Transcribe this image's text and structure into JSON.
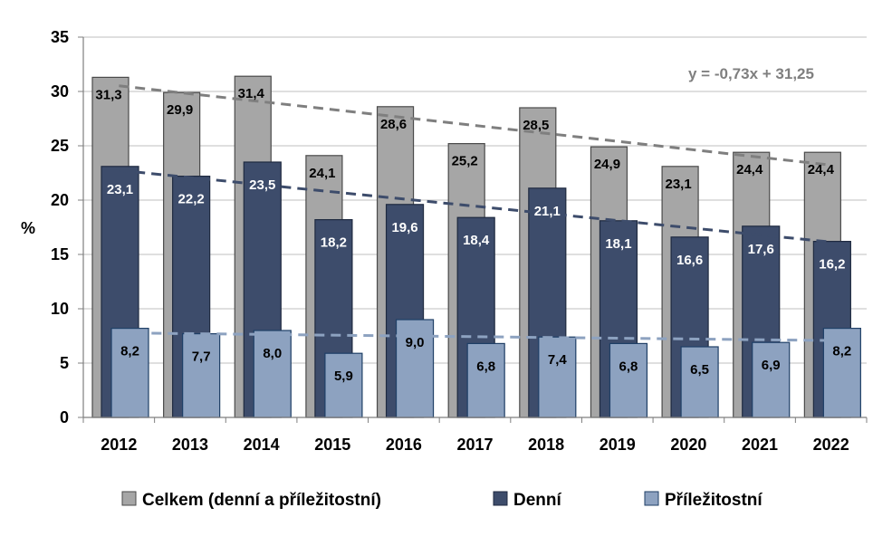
{
  "chart_data": {
    "type": "bar",
    "title": "",
    "xlabel": "",
    "ylabel": "%",
    "ylim": [
      0,
      35
    ],
    "yticks": [
      0,
      5,
      10,
      15,
      20,
      25,
      30,
      35
    ],
    "grid": true,
    "legend_position": "bottom",
    "categories": [
      "2012",
      "2013",
      "2014",
      "2015",
      "2016",
      "2017",
      "2018",
      "2019",
      "2020",
      "2021",
      "2022"
    ],
    "series": [
      {
        "name": "Celkem (denní a příležitostní)",
        "color": "#a6a6a6",
        "label_color": "#000000",
        "values": [
          31.3,
          29.9,
          31.4,
          24.1,
          28.6,
          25.2,
          28.5,
          24.9,
          23.1,
          24.4,
          24.4
        ],
        "labels": [
          "31,3",
          "29,9",
          "31,4",
          "24,1",
          "28,6",
          "25,2",
          "28,5",
          "24,9",
          "23,1",
          "24,4",
          "24,4"
        ],
        "trendline": {
          "slope": -0.73,
          "intercept": 31.25,
          "color": "#7f7f7f"
        }
      },
      {
        "name": "Denní",
        "color": "#3d4c6b",
        "label_color": "#ffffff",
        "values": [
          23.1,
          22.2,
          23.5,
          18.2,
          19.6,
          18.4,
          21.1,
          18.1,
          16.6,
          17.6,
          16.2
        ],
        "labels": [
          "23,1",
          "22,2",
          "23,5",
          "18,2",
          "19,6",
          "18,4",
          "21,1",
          "18,1",
          "16,6",
          "17,6",
          "16,2"
        ],
        "trendline": {
          "slope": -0.66,
          "intercept": 23.4,
          "color": "#3d4c6b"
        }
      },
      {
        "name": "Příležitostní",
        "color": "#8da2c0",
        "label_color": "#000000",
        "values": [
          8.2,
          7.7,
          8.0,
          5.9,
          9.0,
          6.8,
          7.4,
          6.8,
          6.5,
          6.9,
          8.2
        ],
        "labels": [
          "8,2",
          "7,7",
          "8,0",
          "5,9",
          "9,0",
          "6,8",
          "7,4",
          "6,8",
          "6,5",
          "6,9",
          "8,2"
        ],
        "trendline": {
          "slope": -0.07,
          "intercept": 7.85,
          "color": "#8da2c0"
        }
      }
    ],
    "annotations": [
      {
        "text": "y = -0,73x + 31,25",
        "color": "#7f7f7f"
      }
    ]
  }
}
